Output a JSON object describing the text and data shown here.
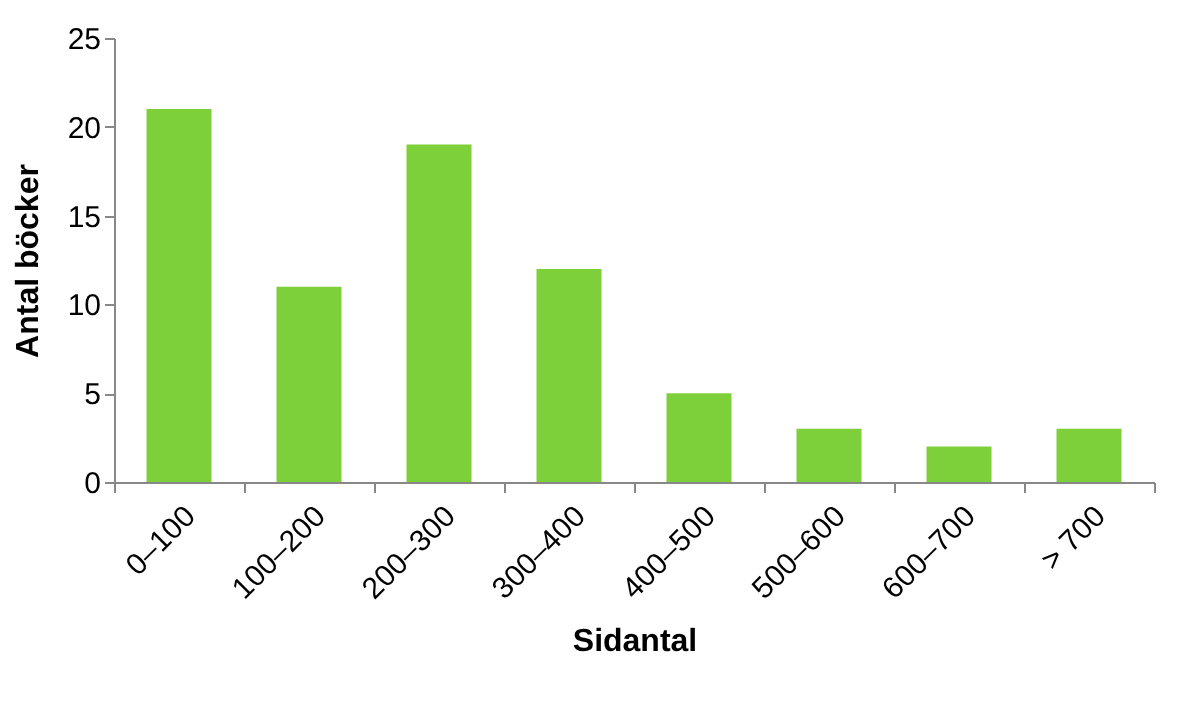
{
  "chart_data": {
    "type": "bar",
    "xlabel": "Sidantal",
    "ylabel": "Antal böcker",
    "categories": [
      "0–100",
      "100–200",
      "200–300",
      "300–400",
      "400–500",
      "500–600",
      "600–700",
      "> 700"
    ],
    "values": [
      21,
      11,
      19,
      12,
      5,
      3,
      2,
      3
    ],
    "color": "#7ed03b",
    "ylim": [
      0,
      25
    ],
    "yticks": [
      0,
      5,
      10,
      15,
      20,
      25
    ],
    "grid": false
  }
}
